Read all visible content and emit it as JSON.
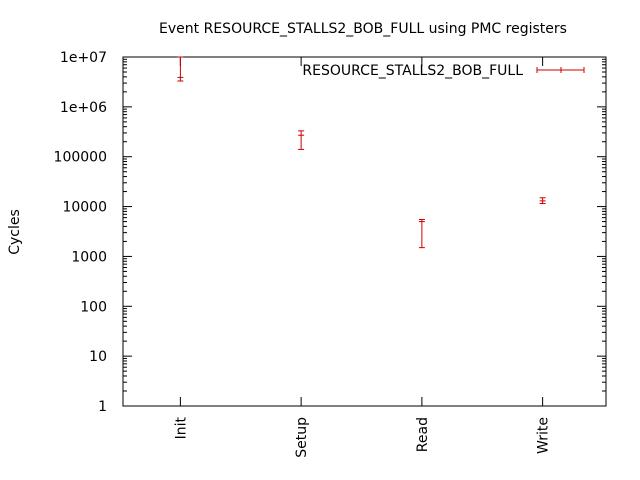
{
  "chart_data": {
    "type": "scatter",
    "title": "Event RESOURCE_STALLS2_BOB_FULL using PMC registers",
    "xlabel": "",
    "ylabel": "Cycles",
    "y_scale": "log",
    "ylim": [
      1,
      10000000
    ],
    "y_ticks": [
      1,
      10,
      100,
      1000,
      10000,
      100000,
      1000000,
      10000000
    ],
    "y_tick_labels": [
      "1",
      "10",
      "100",
      "1000",
      "10000",
      "100000",
      "1e+06",
      "1e+07"
    ],
    "categories": [
      "Init",
      "Setup",
      "Read",
      "Write"
    ],
    "grid": false,
    "legend": "top-right",
    "series": [
      {
        "name": "RESOURCE_STALLS2_BOB_FULL",
        "color": "#cc0000",
        "points": [
          {
            "x": "Init",
            "y": 3900000,
            "low": 3300000,
            "high": 10000000
          },
          {
            "x": "Setup",
            "y": 270000,
            "low": 140000,
            "high": 330000
          },
          {
            "x": "Read",
            "y": 5000,
            "low": 1500,
            "high": 5500
          },
          {
            "x": "Write",
            "y": 13000,
            "low": 11500,
            "high": 15000
          }
        ]
      }
    ]
  }
}
